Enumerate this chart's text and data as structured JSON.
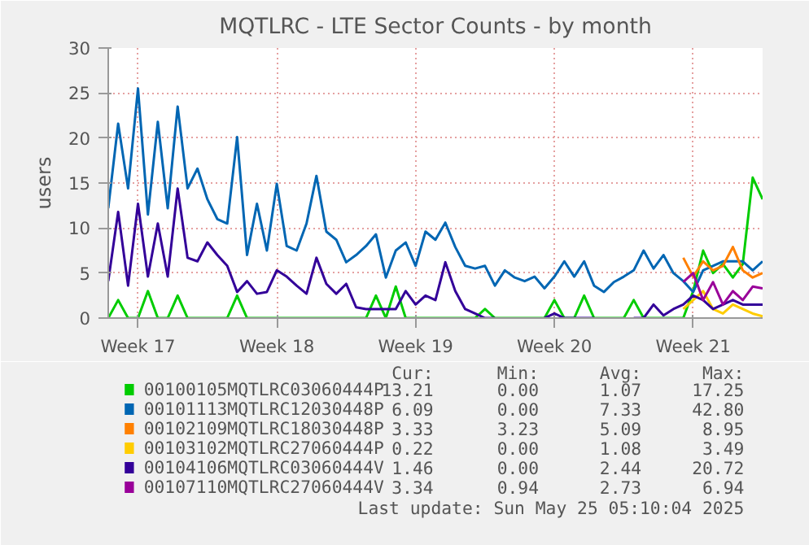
{
  "chart_data": {
    "type": "line",
    "title": "MQTLRC - LTE Sector Counts - by month",
    "ylabel": "users",
    "categories": [
      null,
      null,
      null,
      "Week 17",
      null,
      null,
      null,
      null,
      null,
      null,
      null,
      null,
      null,
      null,
      null,
      null,
      null,
      "Week 18",
      null,
      null,
      null,
      null,
      null,
      null,
      null,
      null,
      null,
      null,
      null,
      null,
      null,
      "Week 19",
      null,
      null,
      null,
      null,
      null,
      null,
      null,
      null,
      null,
      null,
      null,
      null,
      null,
      "Week 20",
      null,
      null,
      null,
      null,
      null,
      null,
      null,
      null,
      null,
      null,
      null,
      null,
      null,
      "Week 21",
      null,
      null,
      null,
      null,
      null,
      null,
      null
    ],
    "ylim": [
      0,
      30
    ],
    "yticks": [
      0,
      5,
      10,
      15,
      20,
      25,
      30
    ],
    "grid": true,
    "legend": "bottom",
    "line_style": "solid",
    "series": [
      {
        "name": "00100105MQTLRC03060444P",
        "color": "#00cc00",
        "values": [
          0,
          2.0,
          0,
          0,
          3.0,
          0,
          0,
          2.5,
          0,
          0,
          0,
          0,
          0,
          2.5,
          0,
          0,
          0,
          0,
          0,
          0,
          0,
          0,
          0,
          0,
          0,
          0,
          0,
          2.5,
          0,
          3.5,
          0,
          0,
          0,
          0,
          0,
          0,
          0,
          0,
          1.0,
          0,
          0,
          0,
          0,
          0,
          0,
          2.0,
          0,
          0,
          2.5,
          0,
          0,
          0,
          0,
          2.0,
          0,
          0,
          0,
          0,
          0,
          3.0,
          7.5,
          5.0,
          6.0,
          4.5,
          6.0,
          15.6,
          13.2
        ]
      },
      {
        "name": "00101113MQTLRC12030448P",
        "color": "#0066b3",
        "values": [
          12.2,
          21.6,
          14.4,
          25.5,
          11.5,
          21.8,
          12.2,
          23.5,
          14.4,
          16.6,
          13.2,
          11.0,
          10.5,
          20.1,
          7.0,
          12.7,
          7.5,
          14.9,
          8.0,
          7.5,
          10.5,
          15.8,
          9.6,
          8.7,
          6.2,
          7.0,
          8.0,
          9.3,
          4.5,
          7.5,
          8.4,
          5.8,
          9.6,
          8.7,
          10.6,
          7.9,
          5.8,
          5.5,
          5.8,
          3.6,
          5.3,
          4.5,
          4.1,
          4.6,
          3.3,
          4.6,
          6.3,
          4.6,
          6.3,
          3.6,
          2.9,
          4.0,
          4.6,
          5.3,
          7.5,
          5.5,
          7.0,
          5.0,
          4.1,
          2.9,
          5.3,
          5.8,
          6.3,
          6.3,
          6.3,
          5.3,
          6.3
        ]
      },
      {
        "name": "00102109MQTLRC18030448P",
        "color": "#ff8000",
        "values": [
          null,
          null,
          null,
          null,
          null,
          null,
          null,
          null,
          null,
          null,
          null,
          null,
          null,
          null,
          null,
          null,
          null,
          null,
          null,
          null,
          null,
          null,
          null,
          null,
          null,
          null,
          null,
          null,
          null,
          null,
          null,
          null,
          null,
          null,
          null,
          null,
          null,
          null,
          null,
          null,
          null,
          null,
          null,
          null,
          null,
          null,
          null,
          null,
          null,
          null,
          null,
          null,
          null,
          null,
          null,
          null,
          null,
          null,
          6.7,
          4.6,
          6.3,
          5.3,
          5.8,
          7.9,
          5.3,
          4.5,
          5.0
        ]
      },
      {
        "name": "00103102MQTLRC27060444P",
        "color": "#ffcc00",
        "values": [
          null,
          null,
          null,
          null,
          null,
          null,
          null,
          null,
          null,
          null,
          null,
          null,
          null,
          null,
          null,
          null,
          null,
          null,
          null,
          null,
          null,
          null,
          null,
          null,
          null,
          null,
          null,
          null,
          null,
          null,
          null,
          null,
          null,
          null,
          null,
          null,
          null,
          null,
          null,
          null,
          null,
          null,
          null,
          null,
          null,
          null,
          null,
          null,
          null,
          null,
          null,
          null,
          null,
          null,
          null,
          null,
          null,
          null,
          1.0,
          2.0,
          3.0,
          1.0,
          0.5,
          1.5,
          1.0,
          0.5,
          0.2
        ]
      },
      {
        "name": "00104106MQTLRC03060444V",
        "color": "#330099",
        "values": [
          4.1,
          11.8,
          3.6,
          12.7,
          4.6,
          10.5,
          4.6,
          14.4,
          6.7,
          6.3,
          8.4,
          7.0,
          5.8,
          2.9,
          4.1,
          2.7,
          2.9,
          5.3,
          4.6,
          3.6,
          2.7,
          6.7,
          3.8,
          2.7,
          3.8,
          1.2,
          1.0,
          1.0,
          1.0,
          1.0,
          3.0,
          1.5,
          2.5,
          2.0,
          6.2,
          3.0,
          1.0,
          0.5,
          0,
          0,
          null,
          null,
          null,
          null,
          0,
          0.5,
          0,
          0,
          0,
          0,
          null,
          null,
          null,
          0,
          0,
          1.5,
          0.3,
          1.0,
          1.5,
          2.5,
          2.0,
          1.0,
          1.5,
          2.0,
          1.5,
          1.5,
          1.5
        ]
      },
      {
        "name": "00107110MQTLRC27060444V",
        "color": "#990099",
        "values": [
          null,
          null,
          null,
          null,
          null,
          null,
          null,
          null,
          null,
          null,
          null,
          null,
          null,
          null,
          null,
          null,
          null,
          null,
          null,
          null,
          null,
          null,
          null,
          null,
          null,
          null,
          null,
          null,
          null,
          null,
          null,
          null,
          null,
          null,
          null,
          null,
          null,
          null,
          null,
          null,
          null,
          null,
          null,
          null,
          null,
          null,
          null,
          null,
          null,
          null,
          null,
          null,
          null,
          null,
          null,
          null,
          null,
          null,
          4.0,
          5.0,
          2.0,
          4.0,
          1.5,
          3.0,
          2.0,
          3.5,
          3.3
        ]
      }
    ],
    "annotations": [
      "Cur:",
      "Min:",
      "Avg:",
      "Max:",
      "13.21",
      "0.00",
      "1.07",
      "17.25",
      "6.09",
      "0.00",
      "7.33",
      "42.80",
      "3.33",
      "3.23",
      "5.09",
      "8.95",
      "0.22",
      "0.00",
      "1.08",
      "3.49",
      "1.46",
      "0.00",
      "2.44",
      "20.72",
      "3.34",
      "0.94",
      "2.73",
      "6.94",
      "Last update: Sun May 25 05:10:04 2025"
    ]
  }
}
